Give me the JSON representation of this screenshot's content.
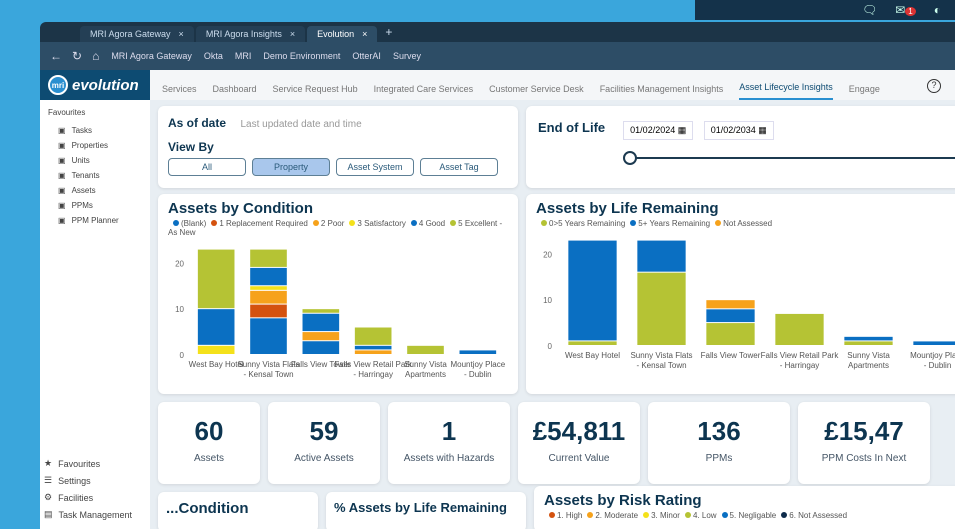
{
  "os": {
    "notif_count": "1"
  },
  "browser": {
    "tabs": [
      {
        "label": "MRI Agora Gateway"
      },
      {
        "label": "MRI Agora Insights"
      },
      {
        "label": "Evolution"
      }
    ],
    "bookmarks": [
      "MRI Agora Gateway",
      "Okta",
      "MRI",
      "Demo Environment",
      "OtterAI",
      "Survey"
    ]
  },
  "app": {
    "logo_badge": "mri",
    "logo": "evolution",
    "nav": [
      "Services",
      "Dashboard",
      "Service Request Hub",
      "Integrated Care Services",
      "Customer Service Desk",
      "Facilities Management Insights",
      "Asset Lifecycle Insights",
      "Engage"
    ],
    "active_nav": "Asset Lifecycle Insights",
    "help": "?"
  },
  "sidebar": {
    "favourites_label": "Favourites",
    "items": [
      {
        "label": "Tasks",
        "icon": "clipboard-icon"
      },
      {
        "label": "Properties",
        "icon": "building-icon"
      },
      {
        "label": "Units",
        "icon": "unit-icon"
      },
      {
        "label": "Tenants",
        "icon": "org-chart-icon"
      },
      {
        "label": "Assets",
        "icon": "gear-icon"
      },
      {
        "label": "PPMs",
        "icon": "gears-icon"
      },
      {
        "label": "PPM Planner",
        "icon": "calendar-icon"
      }
    ],
    "bottom": [
      {
        "label": "Favourites",
        "icon": "star-icon"
      },
      {
        "label": "Settings",
        "icon": "sliders-icon"
      },
      {
        "label": "Facilities",
        "icon": "gear-icon"
      },
      {
        "label": "Task Management",
        "icon": "clipboard-icon"
      }
    ]
  },
  "filters": {
    "as_of_label": "As of date",
    "as_of_value": "Last updated date and time",
    "view_by_label": "View By",
    "view_by_options": [
      "All",
      "Property",
      "Asset System",
      "Asset Tag"
    ],
    "view_by_selected": "Property",
    "end_of_life_label": "End of Life",
    "date_from": "01/02/2024",
    "date_to": "01/02/2034"
  },
  "chart_data": [
    {
      "type": "bar",
      "stacked": true,
      "title": "Assets by Condition",
      "categories": [
        "West Bay Hotel",
        "Sunny Vista Flats - Kensal Town",
        "Falls View Tower",
        "Falls View Retail Park - Harringay",
        "Sunny Vista Apartments",
        "Mountjoy Place - Dublin"
      ],
      "yticks": [
        0,
        10,
        20
      ],
      "ylim": [
        0,
        24
      ],
      "legend": "top-left",
      "series": [
        {
          "name": "(Blank)",
          "color": "#0a6fc2",
          "values": [
            0,
            8,
            3,
            0,
            0,
            0
          ]
        },
        {
          "name": "1 Replacement Required",
          "color": "#d4520f",
          "values": [
            0,
            3,
            0,
            0,
            0,
            0
          ]
        },
        {
          "name": "2 Poor",
          "color": "#f6a21b",
          "values": [
            0,
            3,
            2,
            1,
            0,
            0
          ]
        },
        {
          "name": "3 Satisfactory",
          "color": "#f4e11a",
          "values": [
            2,
            1,
            0,
            0,
            0,
            0
          ]
        },
        {
          "name": "4 Good",
          "color": "#0a6fc2",
          "values": [
            8,
            4,
            4,
            1,
            0,
            1
          ]
        },
        {
          "name": "5 Excellent - As New",
          "color": "#b5c334",
          "values": [
            13,
            4,
            1,
            4,
            2,
            0
          ]
        }
      ]
    },
    {
      "type": "bar",
      "stacked": true,
      "title": "Assets by Life Remaining",
      "categories": [
        "West Bay Hotel",
        "Sunny Vista Flats - Kensal Town",
        "Falls View Tower",
        "Falls View Retail Park - Harringay",
        "Sunny Vista Apartments",
        "Mountjoy Place - Dublin"
      ],
      "yticks": [
        0,
        10,
        20
      ],
      "ylim": [
        0,
        24
      ],
      "legend": "top-left",
      "series": [
        {
          "name": "0>5 Years Remaining",
          "color": "#b5c334",
          "values": [
            1,
            16,
            5,
            7,
            1,
            0
          ]
        },
        {
          "name": "5+ Years Remaining",
          "color": "#0a6fc2",
          "values": [
            22,
            7,
            3,
            0,
            1,
            1
          ]
        },
        {
          "name": "Not Assessed",
          "color": "#f6a21b",
          "values": [
            0,
            0,
            2,
            0,
            0,
            0
          ]
        }
      ]
    }
  ],
  "kpis": [
    {
      "value": "60",
      "label": "Assets"
    },
    {
      "value": "59",
      "label": "Active Assets"
    },
    {
      "value": "1",
      "label": "Assets with Hazards"
    },
    {
      "value": "£54,811",
      "label": "Current Value"
    },
    {
      "value": "136",
      "label": "PPMs"
    },
    {
      "value": "£15,47",
      "label": "PPM Costs In Next"
    }
  ],
  "bottom": {
    "condition_title": "...Condition",
    "life_pct_title": "% Assets by Life Remaining",
    "risk_title": "Assets by Risk Rating",
    "risk_legend": [
      {
        "name": "1. High",
        "color": "#d4520f"
      },
      {
        "name": "2. Moderate",
        "color": "#f6a21b"
      },
      {
        "name": "3. Minor",
        "color": "#f4e11a"
      },
      {
        "name": "4. Low",
        "color": "#b5c334"
      },
      {
        "name": "5. Negligable",
        "color": "#0a6fc2"
      },
      {
        "name": "6. Not Assessed",
        "color": "#0d2a4a"
      }
    ]
  }
}
